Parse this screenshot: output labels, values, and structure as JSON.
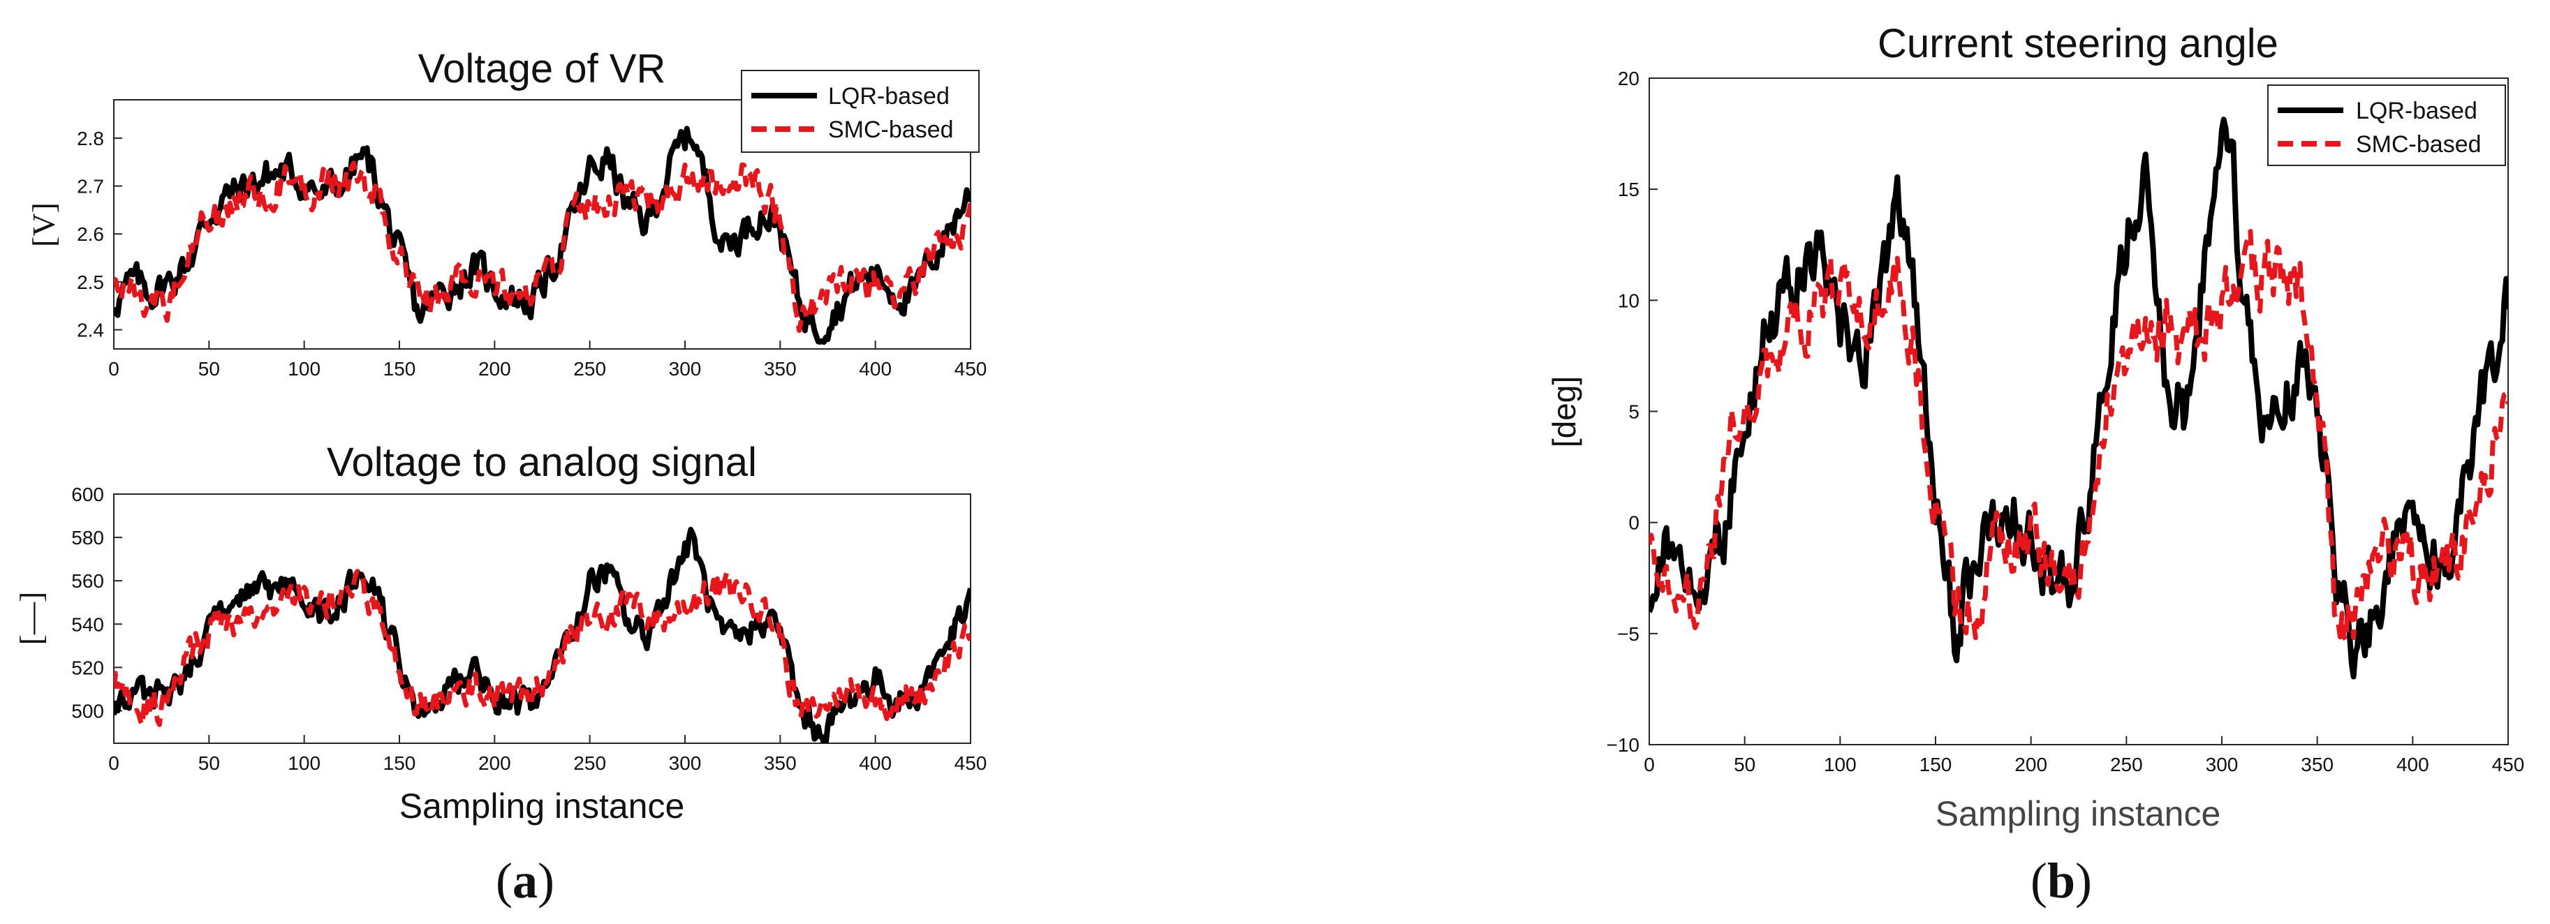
{
  "chart_data": [
    {
      "type": "line",
      "title": "Voltage of VR",
      "xlabel": "",
      "ylabel": "[V]",
      "xlim": [
        0,
        450
      ],
      "ylim": [
        2.36,
        2.88
      ],
      "xticks": [
        0,
        50,
        100,
        150,
        200,
        250,
        300,
        350,
        400,
        450
      ],
      "yticks": [
        2.4,
        2.5,
        2.6,
        2.7,
        2.8
      ],
      "ytick_labels": [
        "2.4",
        "2.5",
        "2.6",
        "2.7",
        "2.8"
      ],
      "legend_position": "top-right",
      "noise": 0.03,
      "series": [
        {
          "name": "LQR-based",
          "color": "#000000",
          "style": "solid",
          "x": [
            0,
            10,
            20,
            30,
            40,
            50,
            60,
            70,
            80,
            90,
            100,
            110,
            120,
            130,
            135,
            140,
            150,
            160,
            170,
            180,
            190,
            200,
            210,
            220,
            230,
            240,
            250,
            260,
            270,
            280,
            290,
            300,
            305,
            310,
            320,
            330,
            340,
            350,
            360,
            370,
            380,
            390,
            400,
            410,
            420,
            430,
            440,
            450
          ],
          "y": [
            2.46,
            2.5,
            2.48,
            2.5,
            2.55,
            2.64,
            2.68,
            2.7,
            2.72,
            2.73,
            2.71,
            2.68,
            2.71,
            2.76,
            2.74,
            2.68,
            2.55,
            2.43,
            2.47,
            2.5,
            2.53,
            2.49,
            2.47,
            2.46,
            2.53,
            2.62,
            2.73,
            2.76,
            2.65,
            2.62,
            2.72,
            2.8,
            2.81,
            2.72,
            2.58,
            2.6,
            2.65,
            2.62,
            2.45,
            2.41,
            2.45,
            2.5,
            2.52,
            2.48,
            2.47,
            2.55,
            2.62,
            2.69
          ]
        },
        {
          "name": "SMC-based",
          "color": "#e8161b",
          "style": "dashed",
          "x": [
            0,
            10,
            20,
            30,
            40,
            50,
            60,
            70,
            80,
            90,
            100,
            110,
            120,
            130,
            140,
            150,
            160,
            170,
            180,
            190,
            200,
            210,
            220,
            230,
            240,
            250,
            260,
            270,
            280,
            290,
            300,
            310,
            320,
            330,
            340,
            350,
            360,
            370,
            380,
            390,
            400,
            410,
            420,
            430,
            440,
            450
          ],
          "y": [
            2.52,
            2.48,
            2.45,
            2.47,
            2.58,
            2.63,
            2.65,
            2.68,
            2.7,
            2.71,
            2.7,
            2.7,
            2.71,
            2.73,
            2.66,
            2.55,
            2.46,
            2.46,
            2.5,
            2.5,
            2.49,
            2.48,
            2.49,
            2.52,
            2.62,
            2.66,
            2.67,
            2.69,
            2.67,
            2.66,
            2.7,
            2.72,
            2.72,
            2.72,
            2.7,
            2.63,
            2.45,
            2.46,
            2.5,
            2.51,
            2.49,
            2.48,
            2.48,
            2.54,
            2.6,
            2.62
          ]
        }
      ]
    },
    {
      "type": "line",
      "title": "Voltage to analog signal",
      "xlabel": "Sampling instance",
      "ylabel": "[—]",
      "xlim": [
        0,
        450
      ],
      "ylim": [
        485,
        600
      ],
      "xticks": [
        0,
        50,
        100,
        150,
        200,
        250,
        300,
        350,
        400,
        450
      ],
      "yticks": [
        500,
        520,
        540,
        560,
        580,
        600
      ],
      "ytick_labels": [
        "500",
        "520",
        "540",
        "560",
        "580",
        "600"
      ],
      "legend_position": "none",
      "noise": 6,
      "series": [
        {
          "name": "LQR-based",
          "color": "#000000",
          "style": "solid",
          "x": [
            0,
            10,
            20,
            30,
            40,
            50,
            60,
            70,
            80,
            90,
            100,
            110,
            120,
            130,
            135,
            140,
            150,
            160,
            170,
            180,
            190,
            200,
            210,
            220,
            230,
            240,
            250,
            260,
            270,
            280,
            290,
            300,
            305,
            310,
            320,
            330,
            340,
            350,
            360,
            370,
            380,
            390,
            400,
            410,
            420,
            430,
            440,
            450
          ],
          "y": [
            502,
            510,
            505,
            508,
            520,
            540,
            548,
            552,
            555,
            557,
            552,
            545,
            552,
            563,
            560,
            548,
            522,
            495,
            505,
            512,
            516,
            508,
            504,
            500,
            515,
            535,
            558,
            565,
            540,
            535,
            555,
            575,
            578,
            558,
            530,
            533,
            544,
            538,
            500,
            490,
            498,
            508,
            515,
            505,
            505,
            520,
            535,
            548
          ]
        },
        {
          "name": "SMC-based",
          "color": "#e8161b",
          "style": "dashed",
          "x": [
            0,
            10,
            20,
            30,
            40,
            50,
            60,
            70,
            80,
            90,
            100,
            110,
            120,
            130,
            140,
            150,
            160,
            170,
            180,
            190,
            200,
            210,
            220,
            230,
            240,
            250,
            260,
            270,
            280,
            290,
            300,
            310,
            320,
            330,
            340,
            350,
            360,
            370,
            380,
            390,
            400,
            410,
            420,
            430,
            440,
            450
          ],
          "y": [
            514,
            508,
            500,
            505,
            525,
            535,
            540,
            545,
            550,
            552,
            550,
            550,
            552,
            556,
            542,
            520,
            502,
            503,
            510,
            510,
            508,
            506,
            508,
            512,
            535,
            542,
            545,
            548,
            545,
            542,
            550,
            555,
            556,
            556,
            550,
            535,
            497,
            500,
            508,
            510,
            506,
            505,
            505,
            515,
            528,
            532
          ]
        }
      ]
    },
    {
      "type": "line",
      "title": "Current steering angle",
      "xlabel": "Sampling instance",
      "ylabel": "[deg]",
      "xlim": [
        0,
        450
      ],
      "ylim": [
        -10,
        20
      ],
      "xticks": [
        0,
        50,
        100,
        150,
        200,
        250,
        300,
        350,
        400,
        450
      ],
      "yticks": [
        -10,
        -5,
        0,
        5,
        10,
        15,
        20
      ],
      "ytick_labels": [
        "−10",
        "−5",
        "0",
        "5",
        "10",
        "15",
        "20"
      ],
      "legend_position": "top-right",
      "noise": 1.2,
      "series": [
        {
          "name": "LQR-based",
          "color": "#000000",
          "style": "solid",
          "x": [
            0,
            10,
            20,
            30,
            40,
            50,
            60,
            70,
            80,
            90,
            100,
            110,
            120,
            130,
            135,
            140,
            150,
            160,
            170,
            180,
            190,
            200,
            210,
            220,
            230,
            240,
            250,
            260,
            270,
            280,
            290,
            300,
            305,
            310,
            320,
            330,
            340,
            350,
            360,
            370,
            380,
            390,
            400,
            410,
            420,
            430,
            440,
            450
          ],
          "y": [
            -3,
            -1,
            -2,
            -2,
            0,
            5,
            8,
            10,
            11,
            12,
            9,
            7,
            10,
            14,
            13,
            9,
            2,
            -5,
            -2,
            0,
            1,
            -1,
            -2,
            -3,
            1,
            7,
            13,
            15,
            7,
            5,
            11,
            17,
            18,
            11,
            4,
            5,
            7,
            6,
            -2,
            -6,
            -4,
            -1,
            1,
            -2,
            -2,
            3,
            7,
            10
          ]
        },
        {
          "name": "SMC-based",
          "color": "#e8161b",
          "style": "dashed",
          "x": [
            0,
            10,
            20,
            30,
            40,
            50,
            60,
            70,
            80,
            90,
            100,
            110,
            120,
            130,
            140,
            150,
            160,
            170,
            180,
            190,
            200,
            210,
            220,
            230,
            240,
            250,
            260,
            270,
            280,
            290,
            300,
            310,
            320,
            330,
            340,
            350,
            360,
            370,
            380,
            390,
            400,
            410,
            420,
            430,
            440,
            450
          ],
          "y": [
            0,
            -2,
            -4,
            -3,
            3,
            6,
            7,
            8,
            9,
            10,
            10,
            10,
            10,
            11,
            7,
            1,
            -4,
            -4,
            -1,
            -1,
            -1,
            -2,
            -2,
            -1,
            5,
            7,
            8,
            9,
            8,
            8,
            10,
            11,
            11,
            11,
            11,
            7,
            -5,
            -4,
            -1,
            -1,
            -2,
            -2,
            -2,
            0,
            3,
            5
          ]
        }
      ]
    }
  ],
  "panel_labels": {
    "a": "(a)",
    "b": "(b)",
    "a_inner": "a",
    "b_inner": "b"
  },
  "legend": {
    "lqr": "LQR-based",
    "smc": "SMC-based"
  }
}
